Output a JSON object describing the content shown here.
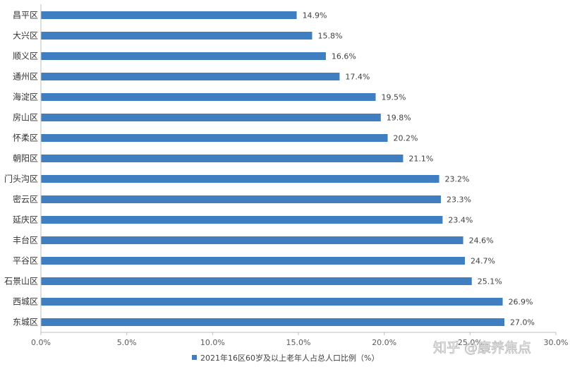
{
  "chart_data": {
    "type": "bar",
    "orientation": "horizontal",
    "categories": [
      "昌平区",
      "大兴区",
      "顺义区",
      "通州区",
      "海淀区",
      "房山区",
      "怀柔区",
      "朝阳区",
      "门头沟区",
      "密云区",
      "延庆区",
      "丰台区",
      "平谷区",
      "石景山区",
      "西城区",
      "东城区"
    ],
    "series": [
      {
        "name": "2021年16区60岁及以上老年人占总人口比例（%）",
        "values": [
          14.9,
          15.8,
          16.6,
          17.4,
          19.5,
          19.8,
          20.2,
          21.1,
          23.2,
          23.3,
          23.4,
          24.6,
          24.7,
          25.1,
          26.9,
          27.0
        ],
        "labels": [
          "14.9%",
          "15.8%",
          "16.6%",
          "17.4%",
          "19.5%",
          "19.8%",
          "20.2%",
          "21.1%",
          "23.2%",
          "23.3%",
          "23.4%",
          "24.6%",
          "24.7%",
          "25.1%",
          "26.9%",
          "27.0%"
        ]
      }
    ],
    "xlim": [
      0,
      30
    ],
    "xticks": [
      0,
      5,
      10,
      15,
      20,
      25,
      30
    ],
    "xtick_labels": [
      "0.0%",
      "5.0%",
      "10.0%",
      "15.0%",
      "20.0%",
      "25.0%",
      "30.0%"
    ],
    "grid": false,
    "legend_position": "bottom",
    "bar_color": "#3f7fc1"
  },
  "watermark": "知乎 @康养焦点"
}
